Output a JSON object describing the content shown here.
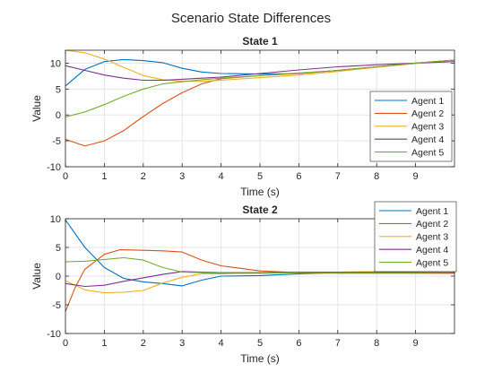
{
  "figure": {
    "title": "Scenario State Differences"
  },
  "colors": {
    "Agent 1": "#0072BD",
    "Agent 2": "#D95319",
    "Agent 3": "#EDB120",
    "Agent 4": "#7E2F8E",
    "Agent 5": "#77AC30"
  },
  "chart_data": [
    {
      "type": "line",
      "title": "State 1",
      "xlabel": "Time (s)",
      "ylabel": "Value",
      "xlim": [
        0,
        10
      ],
      "ylim": [
        -10,
        12.5
      ],
      "xticks": [
        0,
        1,
        2,
        3,
        4,
        5,
        6,
        7,
        8,
        9
      ],
      "yticks": [
        -10,
        -5,
        0,
        5,
        10
      ],
      "grid": true,
      "legend": "lower-right",
      "series": [
        {
          "name": "Agent 1",
          "x": [
            0,
            0.5,
            1,
            1.5,
            2,
            2.5,
            3,
            3.5,
            4,
            5,
            6,
            7,
            8,
            9,
            10
          ],
          "y": [
            5.6,
            8.8,
            10.3,
            10.7,
            10.5,
            10.1,
            9.0,
            8.3,
            8.0,
            7.9,
            8.0,
            8.6,
            9.3,
            10.0,
            10.6
          ]
        },
        {
          "name": "Agent 2",
          "x": [
            0,
            0.5,
            1,
            1.5,
            2,
            2.5,
            3,
            3.5,
            4,
            5,
            6,
            7,
            8,
            9,
            10
          ],
          "y": [
            -4.7,
            -6.0,
            -5.0,
            -3.0,
            -0.3,
            2.2,
            4.3,
            6.0,
            7.0,
            7.6,
            8.0,
            8.6,
            9.3,
            10.0,
            10.6
          ]
        },
        {
          "name": "Agent 3",
          "x": [
            0,
            0.5,
            1,
            1.5,
            2,
            2.5,
            3,
            3.5,
            4,
            5,
            6,
            7,
            8,
            9,
            10
          ],
          "y": [
            12.5,
            12.0,
            10.8,
            9.2,
            7.6,
            6.8,
            6.5,
            6.5,
            6.7,
            7.2,
            7.7,
            8.4,
            9.2,
            9.9,
            10.6
          ]
        },
        {
          "name": "Agent 4",
          "x": [
            0,
            0.5,
            1,
            1.5,
            2,
            2.5,
            3,
            3.5,
            4,
            5,
            6,
            7,
            8,
            9,
            10
          ],
          "y": [
            9.5,
            8.6,
            7.7,
            7.1,
            6.7,
            6.7,
            6.9,
            7.1,
            7.3,
            8.0,
            8.7,
            9.3,
            9.7,
            10.0,
            10.3
          ]
        },
        {
          "name": "Agent 5",
          "x": [
            0,
            0.5,
            1,
            1.5,
            2,
            2.5,
            3,
            3.5,
            4,
            5,
            6,
            7,
            8,
            9,
            10
          ],
          "y": [
            -0.4,
            0.6,
            2.0,
            3.6,
            5.0,
            6.0,
            6.4,
            6.8,
            7.1,
            7.6,
            8.1,
            8.6,
            9.3,
            10.0,
            10.6
          ]
        }
      ]
    },
    {
      "type": "line",
      "title": "State 2",
      "xlabel": "Time (s)",
      "ylabel": "Value",
      "xlim": [
        0,
        10
      ],
      "ylim": [
        -10,
        10
      ],
      "xticks": [
        0,
        1,
        2,
        3,
        4,
        5,
        6,
        7,
        8,
        9
      ],
      "yticks": [
        -10,
        -5,
        0,
        5,
        10
      ],
      "grid": true,
      "legend": "upper-right",
      "series": [
        {
          "name": "Agent 1",
          "x": [
            0,
            0.5,
            1,
            1.5,
            2,
            2.5,
            3,
            3.5,
            4,
            5,
            6,
            7,
            8,
            9,
            10
          ],
          "y": [
            9.8,
            5.0,
            1.5,
            -0.4,
            -1.0,
            -1.3,
            -1.7,
            -0.7,
            0.0,
            0.1,
            0.4,
            0.6,
            0.6,
            0.6,
            0.6
          ]
        },
        {
          "name": "Agent 2",
          "x": [
            0,
            0.25,
            0.5,
            1,
            1.4,
            2,
            2.5,
            3,
            3.5,
            4,
            5,
            6,
            7,
            8,
            9,
            10
          ],
          "y": [
            -6.2,
            -2.0,
            1.2,
            3.8,
            4.6,
            4.5,
            4.4,
            4.2,
            2.8,
            1.8,
            0.9,
            0.6,
            0.5,
            0.5,
            0.5,
            0.5
          ]
        },
        {
          "name": "Agent 3",
          "x": [
            0,
            0.5,
            1,
            1.5,
            2,
            2.5,
            3,
            3.5,
            4,
            5,
            6,
            7,
            8,
            9,
            10
          ],
          "y": [
            -0.8,
            -2.4,
            -2.9,
            -2.8,
            -2.5,
            -1.2,
            -0.2,
            0.4,
            0.4,
            0.6,
            0.7,
            0.7,
            0.8,
            0.8,
            0.8
          ]
        },
        {
          "name": "Agent 4",
          "x": [
            0,
            0.5,
            1,
            1.5,
            2,
            2.5,
            3,
            3.5,
            4,
            5,
            6,
            7,
            8,
            9,
            10
          ],
          "y": [
            -1.3,
            -1.8,
            -1.6,
            -0.9,
            -0.3,
            0.3,
            0.8,
            0.7,
            0.6,
            0.6,
            0.7,
            0.7,
            0.7,
            0.7,
            0.7
          ]
        },
        {
          "name": "Agent 5",
          "x": [
            0,
            0.5,
            1,
            1.5,
            2,
            2.5,
            3,
            3.5,
            4,
            5,
            6,
            7,
            8,
            9,
            10
          ],
          "y": [
            2.5,
            2.6,
            2.9,
            3.2,
            2.8,
            1.5,
            0.7,
            0.6,
            0.5,
            0.5,
            0.6,
            0.6,
            0.6,
            0.6,
            0.7
          ]
        }
      ]
    }
  ]
}
